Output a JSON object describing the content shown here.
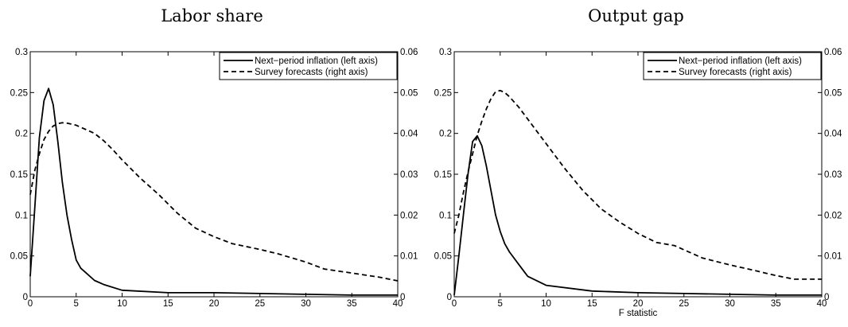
{
  "chart_data": [
    {
      "type": "line",
      "title": "Labor share",
      "xlabel": "",
      "ylabel_left": "",
      "ylabel_right": "",
      "xlim": [
        0,
        40
      ],
      "ylim_left": [
        0,
        0.3
      ],
      "ylim_right": [
        0,
        0.06
      ],
      "xticks": [
        "0",
        "5",
        "10",
        "15",
        "20",
        "25",
        "30",
        "35",
        "40"
      ],
      "yticks_left": [
        "0",
        "0.05",
        "0.1",
        "0.15",
        "0.2",
        "0.25",
        "0.3"
      ],
      "yticks_right": [
        "0",
        "0.01",
        "0.02",
        "0.03",
        "0.04",
        "0.05",
        "0.06"
      ],
      "legend_position": "top-right",
      "series": [
        {
          "name": "Next−period inflation (left axis)",
          "axis": "left",
          "style": "solid",
          "x": [
            0,
            0.5,
            1,
            1.5,
            2,
            2.5,
            3,
            3.5,
            4,
            4.5,
            5,
            5.5,
            6,
            7,
            8,
            10,
            15,
            20,
            25,
            30,
            35,
            40
          ],
          "y": [
            0.025,
            0.11,
            0.195,
            0.24,
            0.255,
            0.235,
            0.19,
            0.14,
            0.1,
            0.07,
            0.045,
            0.035,
            0.03,
            0.02,
            0.015,
            0.008,
            0.005,
            0.005,
            0.004,
            0.003,
            0.002,
            0.002
          ]
        },
        {
          "name": "Survey forecasts (right axis)",
          "axis": "right",
          "style": "dashed",
          "x": [
            0,
            0.5,
            1,
            1.5,
            2,
            2.5,
            3,
            3.5,
            4,
            5,
            6,
            7,
            8,
            9,
            10,
            12,
            14,
            16,
            18,
            20,
            22,
            25,
            27,
            30,
            32,
            35,
            38,
            40
          ],
          "y": [
            0.025,
            0.031,
            0.035,
            0.0385,
            0.0405,
            0.0418,
            0.0424,
            0.0426,
            0.0425,
            0.042,
            0.041,
            0.04,
            0.0382,
            0.036,
            0.0335,
            0.029,
            0.025,
            0.0205,
            0.0168,
            0.0147,
            0.013,
            0.0116,
            0.0105,
            0.0085,
            0.0068,
            0.0058,
            0.0048,
            0.0039
          ]
        }
      ]
    },
    {
      "type": "line",
      "title": "Output gap",
      "xlabel": "F statistic",
      "ylabel_left": "",
      "ylabel_right": "",
      "xlim": [
        0,
        40
      ],
      "ylim_left": [
        0,
        0.3
      ],
      "ylim_right": [
        0,
        0.06
      ],
      "xticks": [
        "0",
        "5",
        "10",
        "15",
        "20",
        "25",
        "30",
        "35",
        "40"
      ],
      "yticks_left": [
        "0",
        "0.05",
        "0.1",
        "0.15",
        "0.2",
        "0.25",
        "0.3"
      ],
      "yticks_right": [
        "0",
        "0.01",
        "0.02",
        "0.03",
        "0.04",
        "0.05",
        "0.06"
      ],
      "legend_position": "top-right",
      "series": [
        {
          "name": "Next−period inflation (left axis)",
          "axis": "left",
          "style": "solid",
          "x": [
            0,
            0.5,
            1,
            1.5,
            2,
            2.5,
            3,
            3.5,
            4,
            4.5,
            5,
            5.5,
            6,
            7,
            8,
            10,
            15,
            20,
            25,
            30,
            35,
            40
          ],
          "y": [
            0.002,
            0.05,
            0.1,
            0.15,
            0.19,
            0.197,
            0.185,
            0.16,
            0.13,
            0.1,
            0.08,
            0.065,
            0.055,
            0.04,
            0.025,
            0.014,
            0.007,
            0.005,
            0.004,
            0.003,
            0.002,
            0.002
          ]
        },
        {
          "name": "Survey forecasts (right axis)",
          "axis": "right",
          "style": "dashed",
          "x": [
            0,
            0.5,
            1,
            1.5,
            2,
            2.5,
            3,
            3.5,
            4,
            4.5,
            5,
            5.5,
            6,
            7,
            8,
            9,
            10,
            12,
            14,
            16,
            18,
            20,
            22,
            24,
            25,
            27,
            30,
            32,
            35,
            37,
            40
          ],
          "y": [
            0.0155,
            0.02,
            0.0255,
            0.0305,
            0.035,
            0.0395,
            0.043,
            0.046,
            0.0485,
            0.0502,
            0.0505,
            0.05,
            0.049,
            0.0465,
            0.0435,
            0.0405,
            0.0375,
            0.0315,
            0.026,
            0.0215,
            0.0183,
            0.0155,
            0.0133,
            0.0125,
            0.0115,
            0.0095,
            0.0078,
            0.0068,
            0.0052,
            0.0043,
            0.0043
          ]
        }
      ]
    }
  ]
}
